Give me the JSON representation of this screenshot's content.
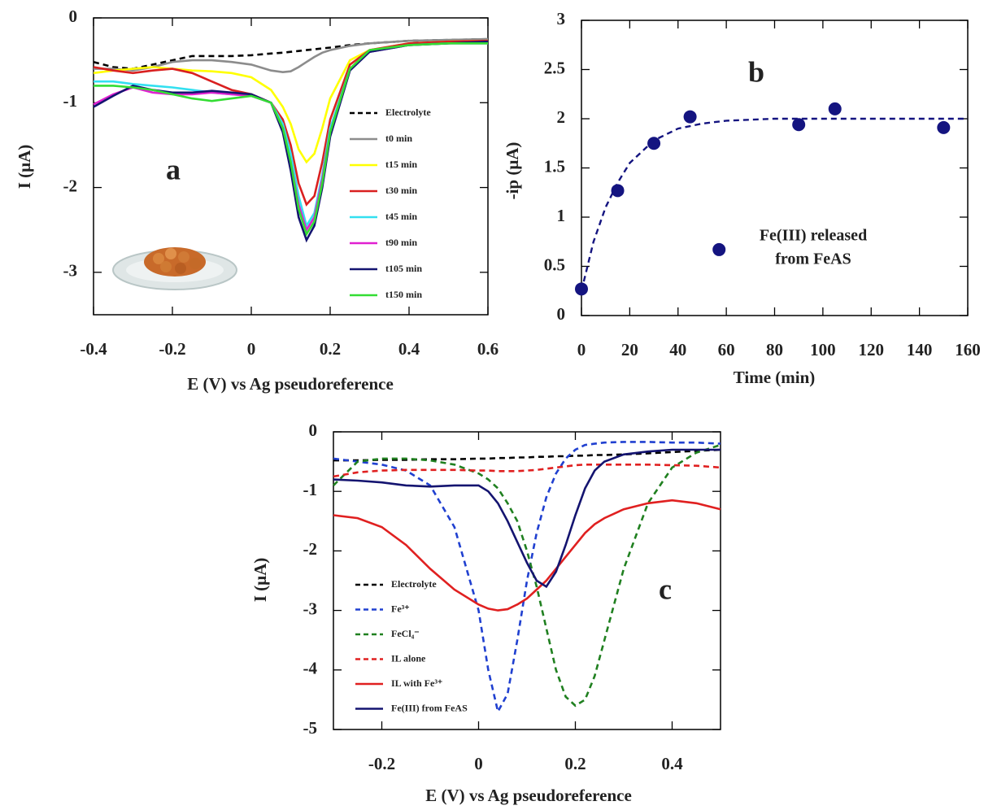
{
  "chart_data": [
    {
      "type": "line",
      "label": "a",
      "xlabel": "E (V) vs Ag pseudoreference",
      "ylabel": "I (μA)",
      "xlim": [
        -0.4,
        0.6
      ],
      "ylim": [
        -3.5,
        0
      ],
      "xticks": [
        -0.4,
        -0.2,
        0,
        0.2,
        0.4,
        0.6
      ],
      "yticks": [
        0,
        -1,
        -2,
        -3
      ],
      "x": [
        -0.4,
        -0.35,
        -0.3,
        -0.25,
        -0.2,
        -0.15,
        -0.1,
        -0.05,
        0,
        0.05,
        0.08,
        0.1,
        0.12,
        0.14,
        0.16,
        0.18,
        0.2,
        0.25,
        0.3,
        0.4,
        0.5,
        0.6
      ],
      "series": [
        {
          "name": "Electrolyte",
          "color": "#000000",
          "style": "dashed",
          "values": [
            -0.52,
            -0.58,
            -0.6,
            -0.55,
            -0.5,
            -0.45,
            -0.45,
            -0.45,
            -0.44,
            -0.42,
            -0.41,
            -0.4,
            -0.39,
            -0.38,
            -0.37,
            -0.36,
            -0.35,
            -0.32,
            -0.3,
            -0.27,
            -0.26,
            -0.25
          ]
        },
        {
          "name": "t0 min",
          "color": "#8c8c8c",
          "style": "solid",
          "values": [
            -0.6,
            -0.6,
            -0.62,
            -0.58,
            -0.52,
            -0.5,
            -0.5,
            -0.52,
            -0.55,
            -0.62,
            -0.64,
            -0.63,
            -0.58,
            -0.52,
            -0.46,
            -0.41,
            -0.38,
            -0.33,
            -0.3,
            -0.27,
            -0.26,
            -0.25
          ]
        },
        {
          "name": "t15 min",
          "color": "#ffff00",
          "style": "solid",
          "values": [
            -0.65,
            -0.62,
            -0.6,
            -0.58,
            -0.6,
            -0.62,
            -0.63,
            -0.65,
            -0.7,
            -0.85,
            -1.05,
            -1.25,
            -1.55,
            -1.7,
            -1.6,
            -1.3,
            -0.95,
            -0.5,
            -0.38,
            -0.3,
            -0.28,
            -0.27
          ]
        },
        {
          "name": "t30 min",
          "color": "#d92020",
          "style": "solid",
          "values": [
            -0.58,
            -0.62,
            -0.65,
            -0.62,
            -0.6,
            -0.65,
            -0.75,
            -0.85,
            -0.9,
            -1.0,
            -1.2,
            -1.5,
            -1.95,
            -2.2,
            -2.1,
            -1.7,
            -1.2,
            -0.55,
            -0.38,
            -0.3,
            -0.28,
            -0.27
          ]
        },
        {
          "name": "t45 min",
          "color": "#33e0f0",
          "style": "solid",
          "values": [
            -0.75,
            -0.75,
            -0.78,
            -0.8,
            -0.82,
            -0.85,
            -0.88,
            -0.9,
            -0.92,
            -1.0,
            -1.25,
            -1.6,
            -2.1,
            -2.45,
            -2.3,
            -1.85,
            -1.3,
            -0.6,
            -0.4,
            -0.32,
            -0.3,
            -0.3
          ]
        },
        {
          "name": "t90 min",
          "color": "#e020d0",
          "style": "solid",
          "values": [
            -1.02,
            -0.9,
            -0.82,
            -0.88,
            -0.9,
            -0.9,
            -0.88,
            -0.9,
            -0.92,
            -1.0,
            -1.3,
            -1.7,
            -2.2,
            -2.5,
            -2.35,
            -1.9,
            -1.35,
            -0.6,
            -0.4,
            -0.32,
            -0.3,
            -0.3
          ]
        },
        {
          "name": "t105 min",
          "color": "#141470",
          "style": "solid",
          "values": [
            -1.05,
            -0.92,
            -0.8,
            -0.85,
            -0.88,
            -0.88,
            -0.86,
            -0.88,
            -0.9,
            -1.0,
            -1.35,
            -1.8,
            -2.35,
            -2.62,
            -2.45,
            -2.0,
            -1.4,
            -0.62,
            -0.4,
            -0.32,
            -0.3,
            -0.28
          ]
        },
        {
          "name": "t150 min",
          "color": "#33dd33",
          "style": "solid",
          "values": [
            -0.8,
            -0.8,
            -0.82,
            -0.85,
            -0.9,
            -0.95,
            -0.98,
            -0.95,
            -0.92,
            -1.0,
            -1.3,
            -1.7,
            -2.25,
            -2.55,
            -2.4,
            -1.95,
            -1.35,
            -0.6,
            -0.38,
            -0.32,
            -0.3,
            -0.3
          ]
        }
      ]
    },
    {
      "type": "scatter",
      "label": "b",
      "xlabel": "Time (min)",
      "ylabel": "-ip (μA)",
      "annotations": [
        "Fe(III) released",
        "from FeAS"
      ],
      "xlim": [
        0,
        160
      ],
      "ylim": [
        0,
        3
      ],
      "xticks": [
        0,
        20,
        40,
        60,
        80,
        100,
        120,
        140,
        160
      ],
      "yticks": [
        0,
        0.5,
        1,
        1.5,
        2,
        2.5,
        3
      ],
      "x": [
        0,
        15,
        30,
        45,
        57,
        90,
        105,
        150
      ],
      "values": [
        0.27,
        1.27,
        1.75,
        2.02,
        0.67,
        1.94,
        2.1,
        1.91
      ],
      "color": "#141480",
      "fit": {
        "color": "#141480",
        "style": "dashed",
        "x": [
          0,
          5,
          10,
          15,
          20,
          30,
          40,
          50,
          60,
          80,
          100,
          120,
          140,
          160
        ],
        "values": [
          0.25,
          0.75,
          1.1,
          1.35,
          1.55,
          1.78,
          1.9,
          1.95,
          1.98,
          2.0,
          2.0,
          2.0,
          2.0,
          2.0
        ]
      }
    },
    {
      "type": "line",
      "label": "c",
      "xlabel": "E (V) vs Ag pseudoreference",
      "ylabel": "I (μA)",
      "xlim": [
        -0.3,
        0.5
      ],
      "ylim": [
        -5,
        0
      ],
      "xticks": [
        -0.2,
        0,
        0.2,
        0.4
      ],
      "yticks": [
        0,
        -1,
        -2,
        -3,
        -4,
        -5
      ],
      "x": [
        -0.3,
        -0.25,
        -0.2,
        -0.15,
        -0.1,
        -0.05,
        0,
        0.02,
        0.04,
        0.06,
        0.08,
        0.1,
        0.12,
        0.14,
        0.16,
        0.18,
        0.2,
        0.22,
        0.24,
        0.26,
        0.3,
        0.35,
        0.4,
        0.45,
        0.5
      ],
      "series": [
        {
          "name": "Electrolyte",
          "color": "#000000",
          "style": "dashed",
          "values": [
            -0.48,
            -0.48,
            -0.47,
            -0.47,
            -0.46,
            -0.46,
            -0.45,
            -0.45,
            -0.44,
            -0.44,
            -0.43,
            -0.43,
            -0.42,
            -0.42,
            -0.41,
            -0.41,
            -0.4,
            -0.4,
            -0.39,
            -0.39,
            -0.38,
            -0.36,
            -0.34,
            -0.32,
            -0.3
          ]
        },
        {
          "name": "Fe³⁺",
          "color": "#2040d0",
          "style": "dashed",
          "values": [
            -0.45,
            -0.5,
            -0.55,
            -0.65,
            -0.9,
            -1.6,
            -3.0,
            -4.0,
            -4.7,
            -4.4,
            -3.5,
            -2.5,
            -1.7,
            -1.1,
            -0.7,
            -0.45,
            -0.3,
            -0.22,
            -0.2,
            -0.18,
            -0.17,
            -0.17,
            -0.18,
            -0.18,
            -0.2
          ]
        },
        {
          "name": "FeCl₄⁻",
          "color": "#208020",
          "style": "dashed",
          "values": [
            -0.9,
            -0.5,
            -0.45,
            -0.45,
            -0.48,
            -0.55,
            -0.7,
            -0.8,
            -0.95,
            -1.2,
            -1.5,
            -2.0,
            -2.6,
            -3.3,
            -4.0,
            -4.45,
            -4.6,
            -4.5,
            -4.1,
            -3.5,
            -2.3,
            -1.2,
            -0.6,
            -0.35,
            -0.22
          ]
        },
        {
          "name": "IL alone",
          "color": "#e02020",
          "style": "dashed",
          "values": [
            -0.75,
            -0.68,
            -0.65,
            -0.64,
            -0.64,
            -0.64,
            -0.65,
            -0.65,
            -0.66,
            -0.66,
            -0.66,
            -0.65,
            -0.64,
            -0.62,
            -0.6,
            -0.58,
            -0.56,
            -0.55,
            -0.55,
            -0.55,
            -0.55,
            -0.55,
            -0.56,
            -0.57,
            -0.6
          ]
        },
        {
          "name": "IL with Fe³⁺",
          "color": "#e02020",
          "style": "solid",
          "values": [
            -1.4,
            -1.45,
            -1.6,
            -1.9,
            -2.3,
            -2.65,
            -2.9,
            -2.97,
            -3.0,
            -2.98,
            -2.9,
            -2.8,
            -2.65,
            -2.5,
            -2.3,
            -2.1,
            -1.9,
            -1.7,
            -1.55,
            -1.45,
            -1.3,
            -1.2,
            -1.15,
            -1.2,
            -1.3
          ]
        },
        {
          "name": "Fe(III) from FeAS",
          "color": "#141470",
          "style": "solid",
          "values": [
            -0.8,
            -0.82,
            -0.85,
            -0.9,
            -0.92,
            -0.9,
            -0.9,
            -1.0,
            -1.2,
            -1.5,
            -1.85,
            -2.2,
            -2.5,
            -2.6,
            -2.35,
            -1.9,
            -1.4,
            -0.95,
            -0.65,
            -0.5,
            -0.38,
            -0.33,
            -0.3,
            -0.3,
            -0.3
          ]
        }
      ]
    }
  ]
}
